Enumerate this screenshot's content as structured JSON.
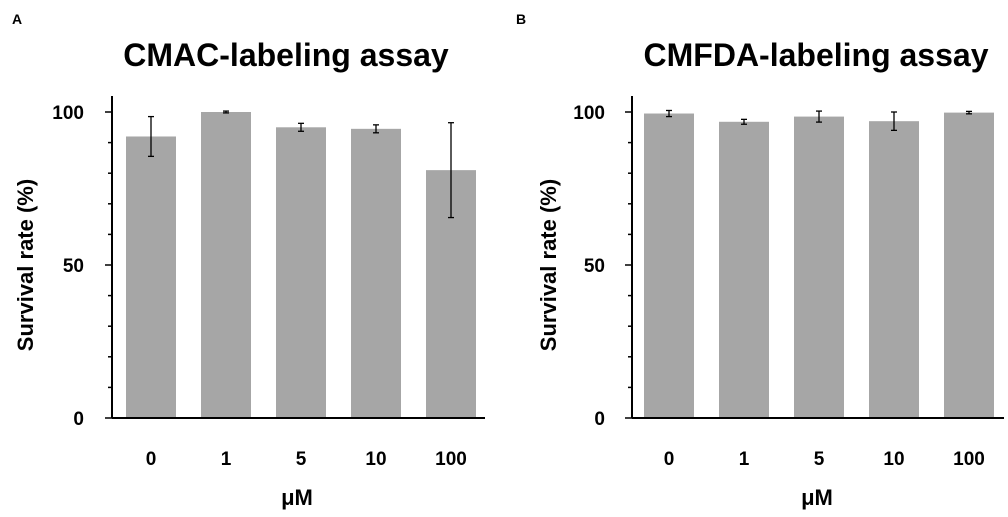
{
  "chart_data": [
    {
      "panel": "A",
      "type": "bar",
      "title": "CMAC-labeling assay",
      "xlabel": "μM",
      "ylabel": "Survival rate (%)",
      "categories": [
        "0",
        "1",
        "5",
        "10",
        "100"
      ],
      "values": [
        92,
        100,
        95,
        94.5,
        81
      ],
      "errors": [
        6.5,
        0.3,
        1.3,
        1.3,
        15.5
      ],
      "ylim": [
        0,
        100
      ],
      "yticks": [
        0,
        50,
        100
      ],
      "bar_color": "#a6a6a6",
      "grid": false,
      "legend": "none"
    },
    {
      "panel": "B",
      "type": "bar",
      "title": "CMFDA-labeling assay",
      "xlabel": "μM",
      "ylabel": "Survival rate (%)",
      "categories": [
        "0",
        "1",
        "5",
        "10",
        "100"
      ],
      "values": [
        99.5,
        96.8,
        98.5,
        97,
        99.8
      ],
      "errors": [
        1,
        0.8,
        1.8,
        3,
        0.4
      ],
      "ylim": [
        0,
        100
      ],
      "yticks": [
        0,
        50,
        100
      ],
      "bar_color": "#a6a6a6",
      "grid": false,
      "legend": "none"
    }
  ]
}
